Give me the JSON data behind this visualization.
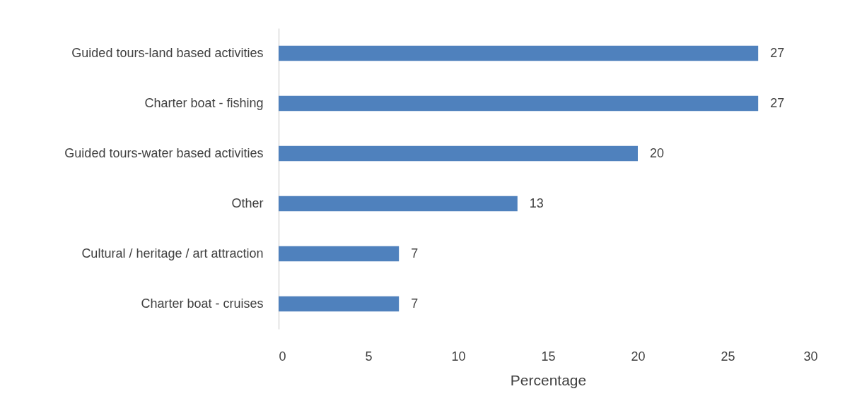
{
  "chart_data": {
    "type": "bar",
    "orientation": "horizontal",
    "xlabel": "Percentage",
    "categories": [
      "Guided tours-land based activities",
      "Charter boat - fishing",
      "Guided tours-water based activities",
      "Other",
      "Cultural / heritage / art attraction",
      "Charter boat - cruises"
    ],
    "values": [
      26.7,
      26.7,
      20,
      13.3,
      6.7,
      6.7
    ],
    "value_labels": [
      "27",
      "27",
      "20",
      "13",
      "7",
      "7"
    ],
    "color": "#4f81bd",
    "xlim": [
      0,
      30
    ],
    "xticks": [
      0,
      5,
      10,
      15,
      20,
      25,
      30
    ],
    "grid": false
  }
}
